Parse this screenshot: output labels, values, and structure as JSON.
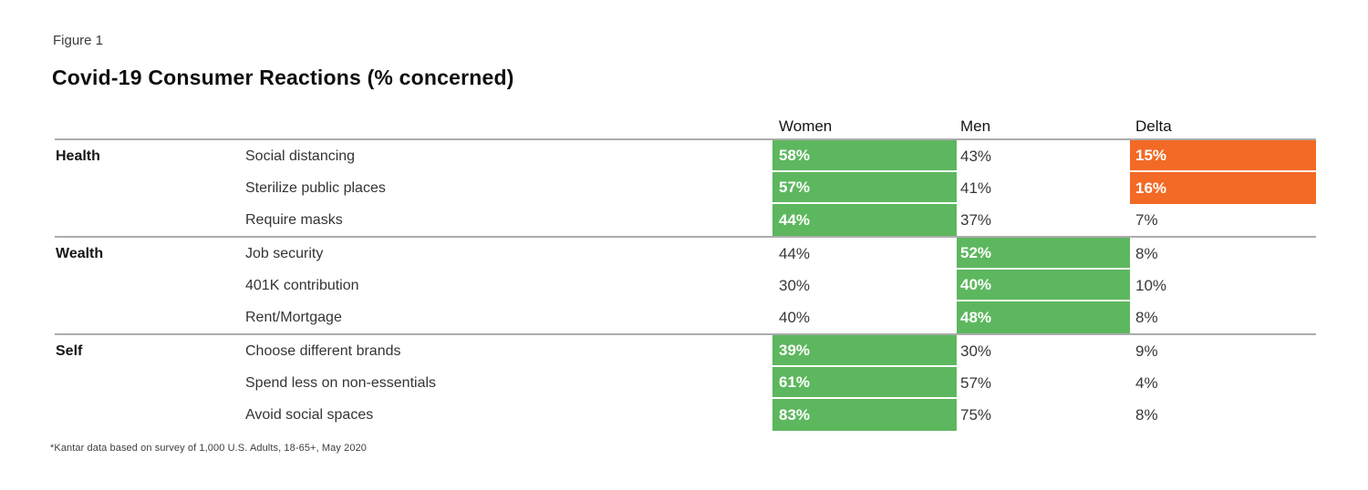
{
  "figure_label": "Figure 1",
  "title": "Covid-19 Consumer Reactions (% concerned)",
  "footnote": "*Kantar data based on survey of 1,000 U.S. Adults, 18-65+, May 2020",
  "colors": {
    "green": "#5db75e",
    "orange": "#f26a25",
    "rule": "#acacac"
  },
  "chart_data": {
    "type": "table",
    "title": "Covid-19 Consumer Reactions (% concerned)",
    "columns": {
      "women": "Women",
      "men": "Men",
      "delta": "Delta"
    },
    "legend_note": "green highlight = higher of Women/Men; orange highlight = delta >= 15%",
    "sections": [
      {
        "category": "Health",
        "rows": [
          {
            "label": "Social distancing",
            "women": "58%",
            "men": "43%",
            "delta": "15%",
            "highlight": "women",
            "delta_highlight": true
          },
          {
            "label": "Sterilize public places",
            "women": "57%",
            "men": "41%",
            "delta": "16%",
            "highlight": "women",
            "delta_highlight": true
          },
          {
            "label": "Require masks",
            "women": "44%",
            "men": "37%",
            "delta": "7%",
            "highlight": "women",
            "delta_highlight": false
          }
        ]
      },
      {
        "category": "Wealth",
        "rows": [
          {
            "label": "Job security",
            "women": "44%",
            "men": "52%",
            "delta": "8%",
            "highlight": "men",
            "delta_highlight": false
          },
          {
            "label": "401K contribution",
            "women": "30%",
            "men": "40%",
            "delta": "10%",
            "highlight": "men",
            "delta_highlight": false
          },
          {
            "label": "Rent/Mortgage",
            "women": "40%",
            "men": "48%",
            "delta": "8%",
            "highlight": "men",
            "delta_highlight": false
          }
        ]
      },
      {
        "category": "Self",
        "rows": [
          {
            "label": "Choose different brands",
            "women": "39%",
            "men": "30%",
            "delta": "9%",
            "highlight": "women",
            "delta_highlight": false
          },
          {
            "label": "Spend less on non-essentials",
            "women": "61%",
            "men": "57%",
            "delta": "4%",
            "highlight": "women",
            "delta_highlight": false
          },
          {
            "label": "Avoid social spaces",
            "women": "83%",
            "men": "75%",
            "delta": "8%",
            "highlight": "women",
            "delta_highlight": false
          }
        ]
      }
    ]
  }
}
